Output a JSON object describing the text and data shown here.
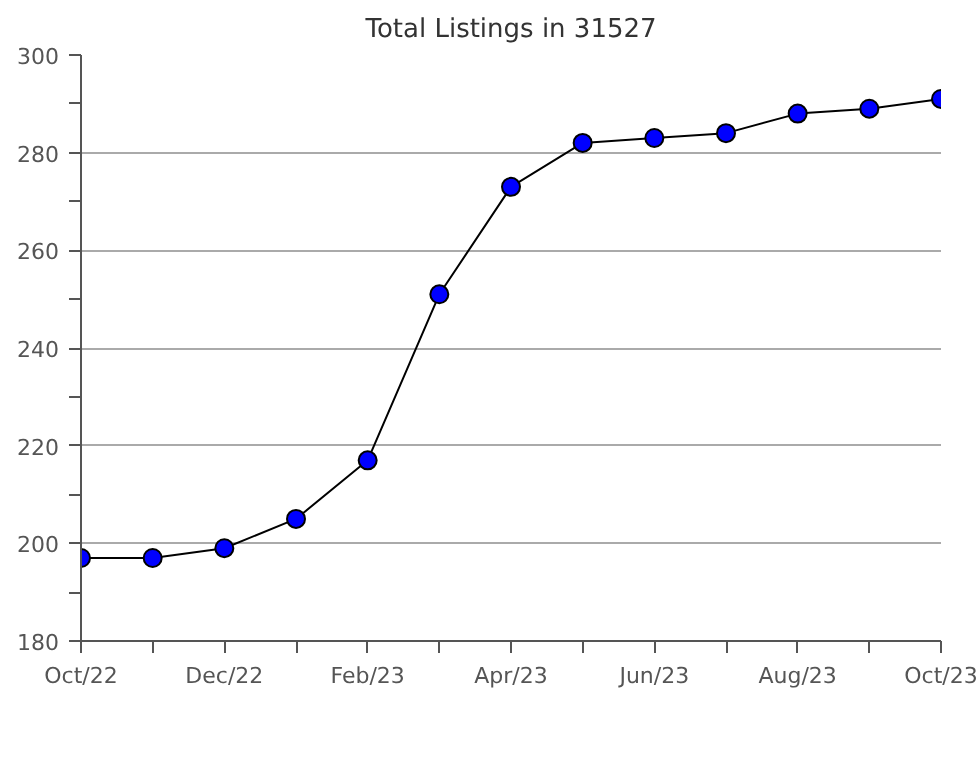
{
  "chart_data": {
    "type": "line",
    "title": "Total Listings in 31527",
    "categories": [
      "Oct/22",
      null,
      "Dec/22",
      null,
      "Feb/23",
      null,
      "Apr/23",
      null,
      "Jun/23",
      null,
      "Aug/23",
      null,
      "Oct/23"
    ],
    "series": [
      {
        "color": "#0000ff",
        "values": [
          197,
          197,
          199,
          205,
          217,
          251,
          273,
          282,
          283,
          284,
          288,
          289,
          291
        ]
      }
    ],
    "ylim": [
      180,
      300
    ],
    "yticks": [
      180,
      {
        "value": 190,
        "label": null
      },
      200,
      {
        "value": 210,
        "label": null
      },
      220,
      {
        "value": 230,
        "label": null
      },
      240,
      {
        "value": 250,
        "label": null
      },
      260,
      {
        "value": 270,
        "label": null
      },
      280,
      {
        "value": 290,
        "label": null
      },
      300
    ],
    "grid": "y",
    "marker": "circle",
    "line_style": "solid"
  }
}
